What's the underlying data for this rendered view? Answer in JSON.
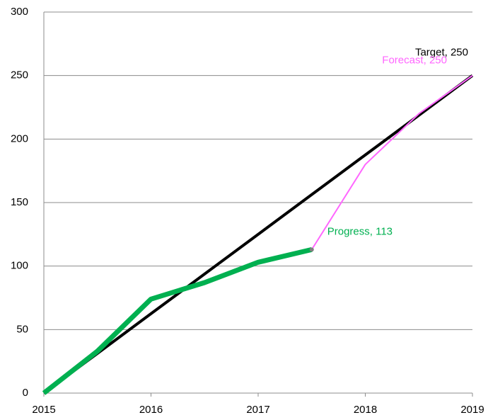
{
  "chart_data": {
    "type": "line",
    "x": [
      2015,
      2015.5,
      2016,
      2016.5,
      2017,
      2017.5,
      2018,
      2018.5,
      2019
    ],
    "series": [
      {
        "name": "Target",
        "color": "#000000",
        "label": "Target, 250",
        "values": [
          0,
          31.25,
          62.5,
          93.75,
          125,
          156.25,
          187.5,
          218.75,
          250
        ]
      },
      {
        "name": "Progress",
        "color": "#00b050",
        "label": "Progress, 113",
        "values": [
          0,
          33,
          74,
          87,
          103,
          113,
          null,
          null,
          null
        ]
      },
      {
        "name": "Forecast",
        "color": "#ff66ff",
        "label": "Forecast, 250",
        "values": [
          null,
          null,
          null,
          null,
          null,
          113,
          180,
          220,
          250
        ]
      }
    ],
    "xlim": [
      2015,
      2019
    ],
    "xticks": [
      2015,
      2016,
      2017,
      2018,
      2019
    ],
    "ylim": [
      0,
      300
    ],
    "yticks": [
      0,
      50,
      100,
      150,
      200,
      250,
      300
    ],
    "grid": true
  }
}
